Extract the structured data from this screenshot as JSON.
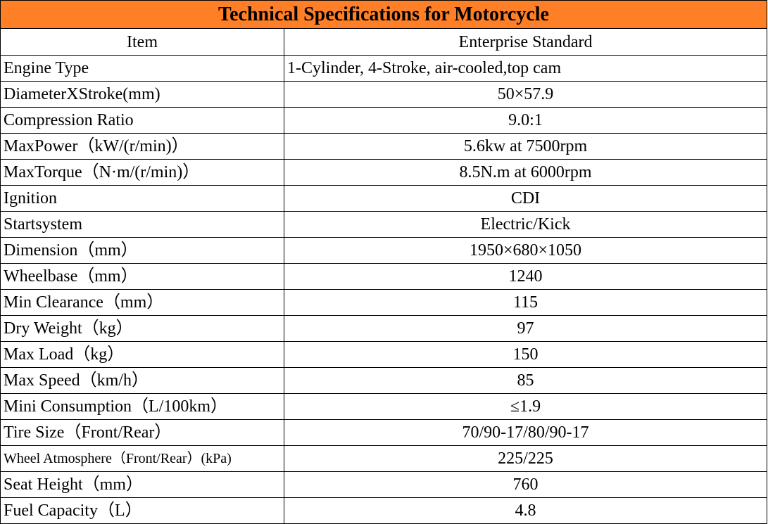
{
  "title": "Technical Specifications for Motorcycle",
  "table": {
    "header": [
      "Item",
      "Enterprise Standard"
    ],
    "rows": [
      [
        "Engine Type",
        "1-Cylinder, 4-Stroke, air-cooled,top cam"
      ],
      [
        "DiameterXStroke(mm)",
        "50×57.9"
      ],
      [
        "Compression Ratio",
        "9.0:1"
      ],
      [
        "MaxPower（kW/(r/min)）",
        "5.6kw at 7500rpm"
      ],
      [
        "MaxTorque（N·m/(r/min)）",
        "8.5N.m at 6000rpm"
      ],
      [
        "Ignition",
        "CDI"
      ],
      [
        "Startsystem",
        "Electric/Kick"
      ],
      [
        "Dimension（mm）",
        "1950×680×1050"
      ],
      [
        "Wheelbase（mm）",
        "1240"
      ],
      [
        "Min Clearance（mm）",
        "115"
      ],
      [
        "Dry Weight（kg）",
        "97"
      ],
      [
        "Max Load（kg）",
        "150"
      ],
      [
        "Max Speed（km/h）",
        "85"
      ],
      [
        "Mini Consumption（L/100km）",
        "≤1.9"
      ],
      [
        "Tire Size（Front/Rear）",
        "70/90-17/80/90-17"
      ],
      [
        "Wheel Atmosphere（Front/Rear）(kPa)",
        "225/225"
      ],
      [
        "Seat Height（mm）",
        "760"
      ],
      [
        "Fuel Capacity（L）",
        "4.8"
      ]
    ]
  }
}
